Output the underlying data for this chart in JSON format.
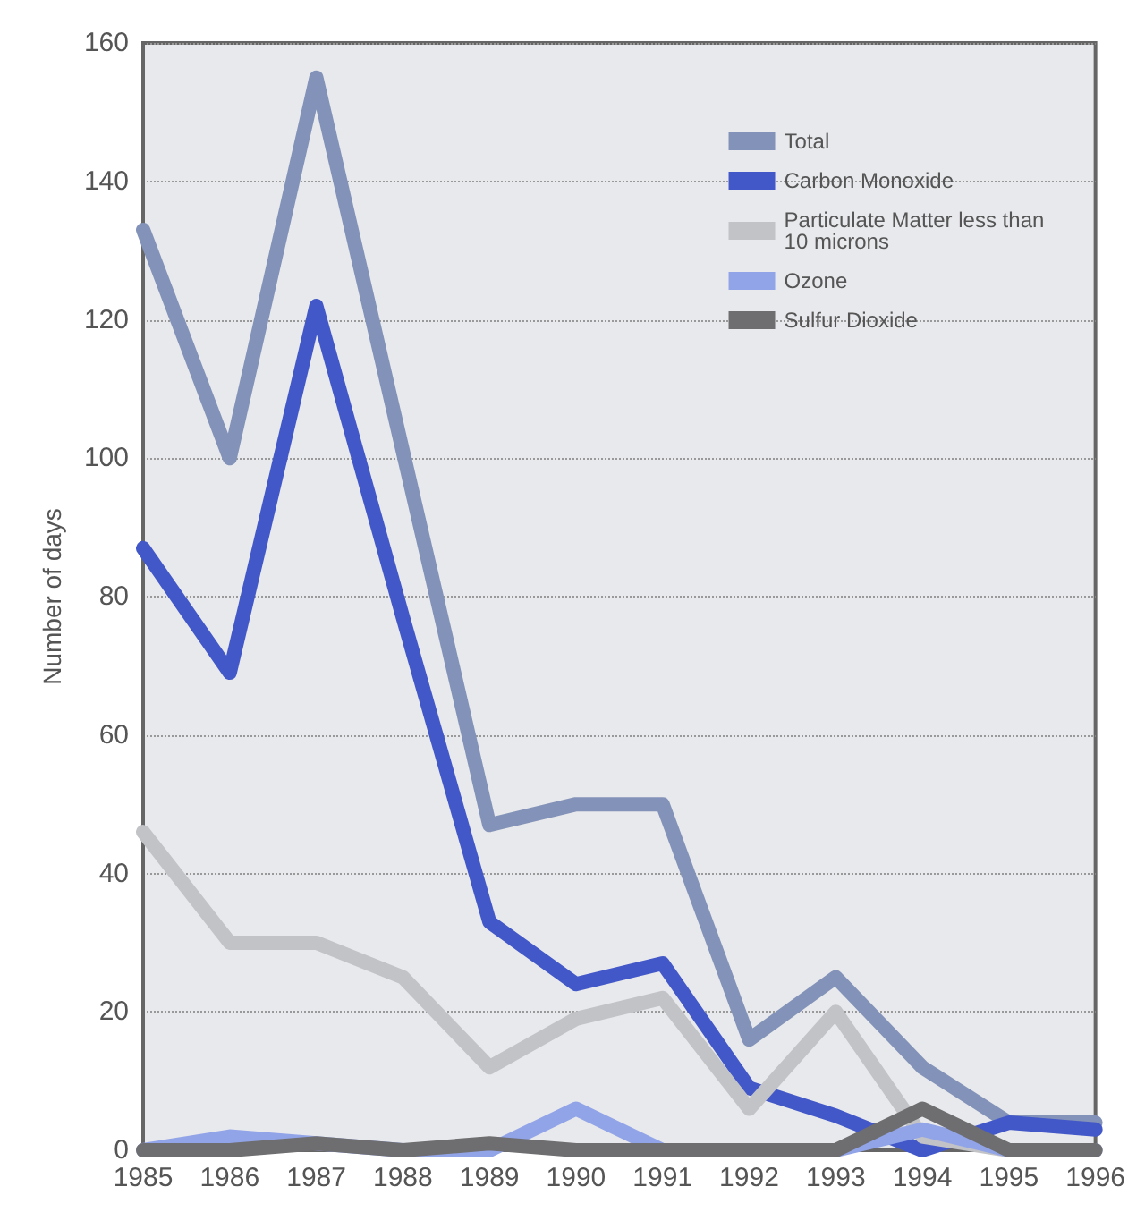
{
  "chart_data": {
    "type": "line",
    "ylabel": "Number of days",
    "categories": [
      "1985",
      "1986",
      "1987",
      "1988",
      "1989",
      "1990",
      "1991",
      "1992",
      "1993",
      "1994",
      "1995",
      "1996"
    ],
    "series": [
      {
        "name": "Total",
        "color": "#8392b8",
        "values": [
          133,
          100,
          155,
          101,
          47,
          50,
          50,
          16,
          25,
          12,
          4,
          4
        ]
      },
      {
        "name": "Carbon Monoxide",
        "color": "#4358c8",
        "values": [
          87,
          69,
          122,
          77,
          33,
          24,
          27,
          9,
          5,
          0,
          4,
          3
        ]
      },
      {
        "name": "Particulate Matter less than 10 microns",
        "color": "#c2c3c6",
        "values": [
          46,
          30,
          30,
          25,
          12,
          19,
          22,
          6,
          20,
          2,
          0,
          0
        ]
      },
      {
        "name": "Ozone",
        "color": "#92a4e8",
        "values": [
          0,
          2,
          1,
          0,
          0,
          6,
          0,
          0,
          0,
          3,
          0,
          0
        ]
      },
      {
        "name": "Sulfur Dioxide",
        "color": "#6e6e70",
        "values": [
          0,
          0,
          1,
          0,
          1,
          0,
          0,
          0,
          0,
          6,
          0,
          0
        ]
      }
    ],
    "ylim": [
      0,
      160
    ],
    "yticks": [
      0,
      20,
      40,
      60,
      80,
      100,
      120,
      140,
      160
    ],
    "grid": "y",
    "legend": "top right",
    "marker": "none",
    "line_style": "solid"
  }
}
